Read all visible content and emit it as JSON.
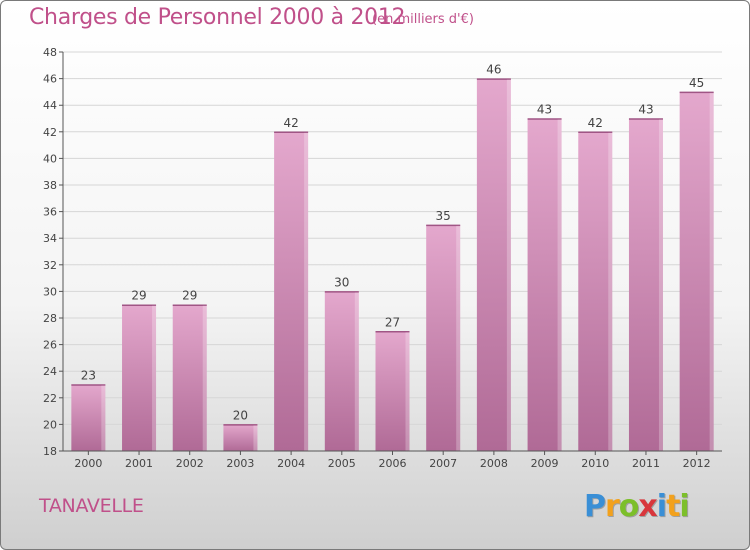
{
  "header": {
    "title": "Charges de Personnel 2000 à 2012",
    "subtitle": "(en milliers d'€)"
  },
  "footer": {
    "commune": "TANAVELLE",
    "logo_letters": [
      {
        "char": "P",
        "color": "#3a8fd6"
      },
      {
        "char": "r",
        "color": "#f2a11d"
      },
      {
        "char": "o",
        "color": "#7cbf2a"
      },
      {
        "char": "x",
        "color": "#d8363c"
      },
      {
        "char": "i",
        "color": "#3a8fd6"
      },
      {
        "char": "t",
        "color": "#f2a11d"
      },
      {
        "char": "i",
        "color": "#7cbf2a"
      }
    ]
  },
  "chart_data": {
    "type": "bar",
    "categories": [
      "2000",
      "2001",
      "2002",
      "2003",
      "2004",
      "2005",
      "2006",
      "2007",
      "2008",
      "2009",
      "2010",
      "2011",
      "2012"
    ],
    "values": [
      23,
      29,
      29,
      20,
      42,
      30,
      27,
      35,
      46,
      43,
      42,
      43,
      45
    ],
    "title": "Charges de Personnel 2000 à 2012",
    "ylim": [
      18,
      48
    ],
    "yticks": [
      18,
      20,
      22,
      24,
      26,
      28,
      30,
      32,
      34,
      36,
      38,
      40,
      42,
      44,
      46,
      48
    ],
    "grid": true,
    "bar_color_top": "#e4a8cd",
    "bar_color_bottom": "#b06a96",
    "data_labels": true
  }
}
